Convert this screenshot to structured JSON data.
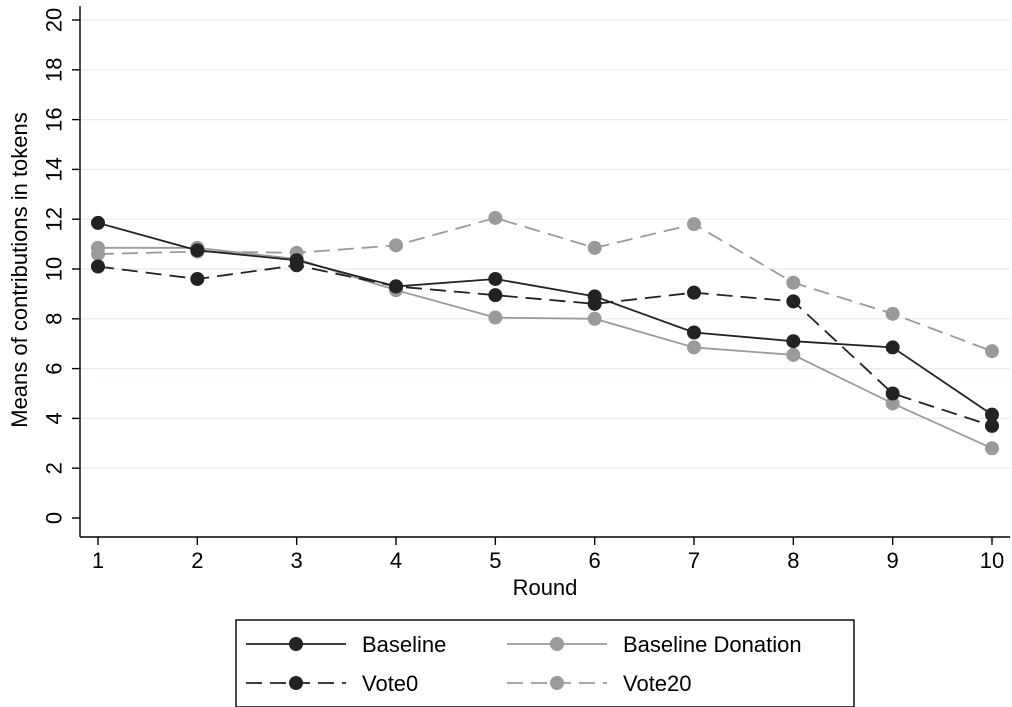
{
  "chart_data": {
    "type": "line",
    "xlabel": "Round",
    "ylabel": "Means of contributions in tokens",
    "x": [
      1,
      2,
      3,
      4,
      5,
      6,
      7,
      8,
      9,
      10
    ],
    "xticks": [
      "1",
      "2",
      "3",
      "4",
      "5",
      "6",
      "7",
      "8",
      "9",
      "10"
    ],
    "yticks": [
      "0",
      "2",
      "4",
      "6",
      "8",
      "10",
      "12",
      "14",
      "16",
      "18",
      "20"
    ],
    "xlim": [
      1,
      10
    ],
    "ylim": [
      0,
      20
    ],
    "grid": true,
    "legend_position": "bottom",
    "series": [
      {
        "name": "Baseline",
        "color": "#222222",
        "dashed": false,
        "values": [
          11.85,
          10.75,
          10.35,
          9.3,
          9.6,
          8.9,
          7.45,
          7.1,
          6.85,
          4.15
        ]
      },
      {
        "name": "Baseline Donation",
        "color": "#9a9a9a",
        "dashed": false,
        "values": [
          10.85,
          10.85,
          10.4,
          9.15,
          8.05,
          8.0,
          6.85,
          6.55,
          4.6,
          2.8
        ]
      },
      {
        "name": "Vote0",
        "color": "#222222",
        "dashed": true,
        "values": [
          10.1,
          9.6,
          10.15,
          9.3,
          8.95,
          8.6,
          9.05,
          8.7,
          5.0,
          3.7
        ]
      },
      {
        "name": "Vote20",
        "color": "#9a9a9a",
        "dashed": true,
        "values": [
          10.6,
          10.7,
          10.65,
          10.95,
          12.05,
          10.85,
          11.8,
          9.45,
          8.2,
          6.7
        ]
      }
    ]
  }
}
